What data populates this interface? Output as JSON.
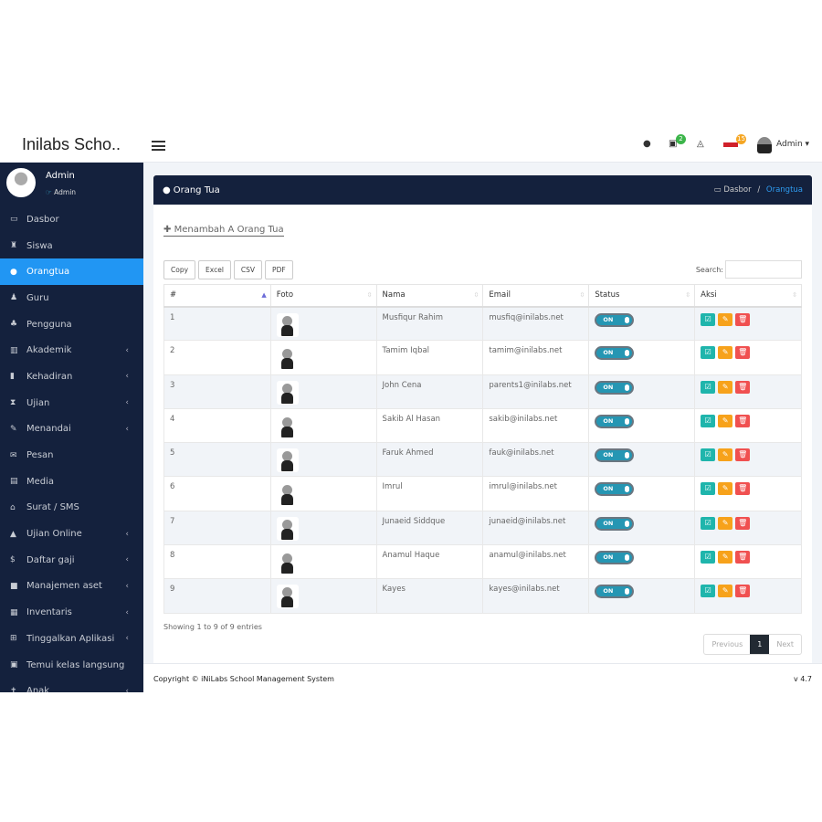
{
  "header": {
    "brand": "Inilabs Scho..",
    "notif_calendar_count": "2",
    "notif_flag_count": "15",
    "user": "Admin"
  },
  "profile": {
    "name": "Admin",
    "role": "Admin"
  },
  "sidebar": {
    "items": [
      {
        "label": "Dasbor",
        "icon": "laptop-icon",
        "ic": "▭",
        "chev": false
      },
      {
        "label": "Siswa",
        "icon": "student-icon",
        "ic": "♜",
        "chev": false
      },
      {
        "label": "Orangtua",
        "icon": "user-icon",
        "ic": "●",
        "chev": false,
        "active": true
      },
      {
        "label": "Guru",
        "icon": "teacher-icon",
        "ic": "♟",
        "chev": false
      },
      {
        "label": "Pengguna",
        "icon": "users-icon",
        "ic": "♣",
        "chev": false
      },
      {
        "label": "Akademik",
        "icon": "bank-icon",
        "ic": "▥",
        "chev": true
      },
      {
        "label": "Kehadiran",
        "icon": "clipboard-icon",
        "ic": "▮",
        "chev": true
      },
      {
        "label": "Ujian",
        "icon": "hourglass-icon",
        "ic": "⧗",
        "chev": true
      },
      {
        "label": "Menandai",
        "icon": "edit-icon",
        "ic": "✎",
        "chev": true
      },
      {
        "label": "Pesan",
        "icon": "envelope-icon",
        "ic": "✉",
        "chev": false
      },
      {
        "label": "Media",
        "icon": "film-icon",
        "ic": "▤",
        "chev": false
      },
      {
        "label": "Surat / SMS",
        "icon": "inbox-icon",
        "ic": "⌂",
        "chev": false
      },
      {
        "label": "Ujian Online",
        "icon": "graduation-cap-icon",
        "ic": "▲",
        "chev": true
      },
      {
        "label": "Daftar gaji",
        "icon": "dollar-icon",
        "ic": "$",
        "chev": true
      },
      {
        "label": "Manajemen aset",
        "icon": "archive-icon",
        "ic": "■",
        "chev": true
      },
      {
        "label": "Inventaris",
        "icon": "fax-icon",
        "ic": "▦",
        "chev": true
      },
      {
        "label": "Tinggalkan Aplikasi",
        "icon": "columns-icon",
        "ic": "⊞",
        "chev": true
      },
      {
        "label": "Temui kelas langsung",
        "icon": "video-file-icon",
        "ic": "▣",
        "chev": false
      },
      {
        "label": "Anak",
        "icon": "child-icon",
        "ic": "✝",
        "chev": true
      }
    ]
  },
  "page": {
    "title": "Orang Tua",
    "breadcrumb_home": "Dasbor",
    "breadcrumb_sep": "/",
    "breadcrumb_current": "Orangtua",
    "add_link": "Menambah A Orang Tua",
    "export_buttons": [
      "Copy",
      "Excel",
      "CSV",
      "PDF"
    ],
    "search_label": "Search:",
    "columns": [
      "#",
      "Foto",
      "Nama",
      "Email",
      "Status",
      "Aksi"
    ],
    "rows": [
      {
        "no": "1",
        "name": "Musfiqur Rahim",
        "email": "musfiq@inilabs.net",
        "status": "ON"
      },
      {
        "no": "2",
        "name": "Tamim Iqbal",
        "email": "tamim@inilabs.net",
        "status": "ON"
      },
      {
        "no": "3",
        "name": "John Cena",
        "email": "parents1@inilabs.net",
        "status": "ON"
      },
      {
        "no": "4",
        "name": "Sakib Al Hasan",
        "email": "sakib@inilabs.net",
        "status": "ON"
      },
      {
        "no": "5",
        "name": "Faruk Ahmed",
        "email": "fauk@inilabs.net",
        "status": "ON"
      },
      {
        "no": "6",
        "name": "Imrul",
        "email": "imrul@inilabs.net",
        "status": "ON"
      },
      {
        "no": "7",
        "name": "Junaeid Siddque",
        "email": "junaeid@inilabs.net",
        "status": "ON"
      },
      {
        "no": "8",
        "name": "Anamul Haque",
        "email": "anamul@inilabs.net",
        "status": "ON"
      },
      {
        "no": "9",
        "name": "Kayes",
        "email": "kayes@inilabs.net",
        "status": "ON"
      }
    ],
    "info": "Showing 1 to 9 of 9 entries",
    "prev": "Previous",
    "page_num": "1",
    "next": "Next"
  },
  "footer": {
    "copyright": "Copyright © iNiLabs School Management System",
    "version": "v 4.7"
  },
  "colors": {
    "sidebar": "#14213d",
    "active": "#2196f3",
    "view": "#1fb5ac",
    "edit": "#f7a21b",
    "delete": "#f05050"
  }
}
